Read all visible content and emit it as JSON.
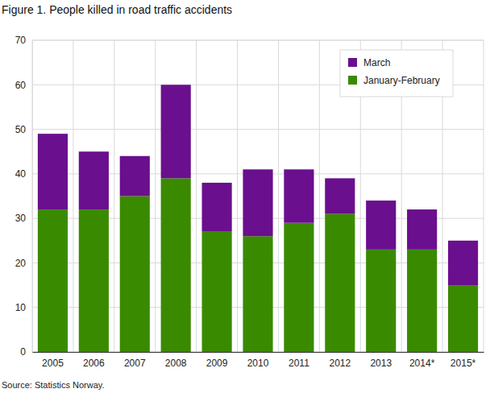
{
  "chart_data": {
    "type": "bar",
    "stacked": true,
    "title": "Figure 1. People killed in road traffic accidents",
    "source": "Source: Statistics Norway.",
    "categories": [
      "2005",
      "2006",
      "2007",
      "2008",
      "2009",
      "2010",
      "2011",
      "2012",
      "2013",
      "2014*",
      "2015*"
    ],
    "series": [
      {
        "name": "January-February",
        "color": "#3a8a00",
        "values": [
          32,
          32,
          35,
          39,
          27,
          26,
          29,
          31,
          23,
          23,
          15
        ]
      },
      {
        "name": "March",
        "color": "#6a0f8e",
        "values": [
          17,
          13,
          9,
          21,
          11,
          15,
          12,
          8,
          11,
          9,
          10
        ]
      }
    ],
    "ylim": [
      0,
      70
    ],
    "yticks": [
      0,
      10,
      20,
      30,
      40,
      50,
      60,
      70
    ],
    "grid": true,
    "legend": "top-right"
  }
}
